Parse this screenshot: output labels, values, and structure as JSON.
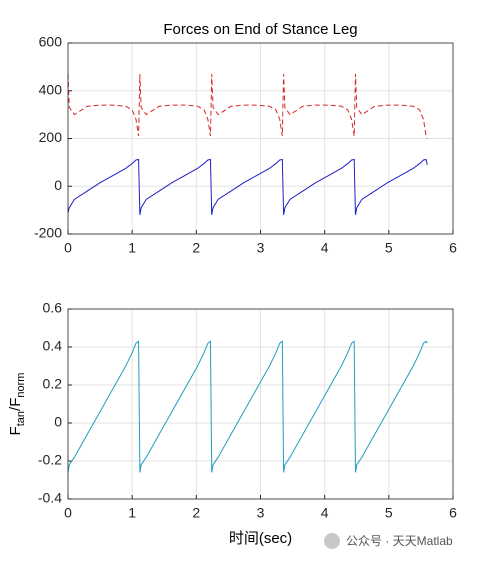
{
  "chart_data": [
    {
      "type": "line",
      "title": "Forces on End of Stance Leg",
      "x": [
        0,
        0.02,
        0.1,
        0.3,
        0.5,
        0.7,
        0.9,
        1.0,
        1.06,
        1.1,
        1.12,
        1.14,
        1.22,
        1.42,
        1.62,
        1.82,
        2.02,
        2.12,
        2.18,
        2.22,
        2.24,
        2.26,
        2.34,
        2.54,
        2.74,
        2.94,
        3.14,
        3.24,
        3.3,
        3.34,
        3.36,
        3.38,
        3.46,
        3.66,
        3.86,
        4.06,
        4.26,
        4.36,
        4.42,
        4.46,
        4.48,
        4.5,
        4.58,
        4.78,
        4.98,
        5.18,
        5.38,
        5.48,
        5.54,
        5.58,
        5.6
      ],
      "series": [
        {
          "color": "#d62728",
          "style": "dashed",
          "values": [
            470,
            330,
            300,
            335,
            340,
            340,
            335,
            320,
            280,
            210,
            470,
            330,
            300,
            335,
            340,
            340,
            335,
            320,
            280,
            210,
            470,
            330,
            300,
            335,
            340,
            340,
            335,
            320,
            280,
            210,
            470,
            330,
            300,
            335,
            340,
            340,
            335,
            320,
            280,
            210,
            470,
            330,
            300,
            335,
            340,
            340,
            335,
            320,
            280,
            210,
            200
          ]
        },
        {
          "color": "#1f1fc8",
          "style": "solid",
          "values": [
            -110,
            -90,
            -55,
            -20,
            15,
            45,
            75,
            95,
            110,
            112,
            -120,
            -90,
            -55,
            -20,
            15,
            45,
            75,
            95,
            110,
            112,
            -120,
            -90,
            -55,
            -20,
            15,
            45,
            75,
            95,
            110,
            112,
            -120,
            -90,
            -55,
            -20,
            15,
            45,
            75,
            95,
            110,
            112,
            -120,
            -90,
            -55,
            -20,
            15,
            45,
            75,
            95,
            110,
            112,
            90
          ]
        }
      ],
      "xlim": [
        0,
        6
      ],
      "xticks": [
        0,
        1,
        2,
        3,
        4,
        5,
        6
      ],
      "ylim": [
        -200,
        600
      ],
      "yticks": [
        -200,
        0,
        200,
        400,
        600
      ],
      "grid": true
    },
    {
      "type": "line",
      "xlabel": "时间(sec)",
      "ylabel_parts": [
        "F",
        "tan",
        "/F",
        "norm"
      ],
      "x": [
        0,
        0.02,
        0.1,
        0.3,
        0.5,
        0.7,
        0.9,
        1.0,
        1.06,
        1.1,
        1.12,
        1.14,
        1.22,
        1.42,
        1.62,
        1.82,
        2.02,
        2.12,
        2.18,
        2.22,
        2.24,
        2.26,
        2.34,
        2.54,
        2.74,
        2.94,
        3.14,
        3.24,
        3.3,
        3.34,
        3.36,
        3.38,
        3.46,
        3.66,
        3.86,
        4.06,
        4.26,
        4.36,
        4.42,
        4.46,
        4.48,
        4.5,
        4.58,
        4.78,
        4.98,
        5.18,
        5.38,
        5.48,
        5.54,
        5.58,
        5.6
      ],
      "series": [
        {
          "color": "#1f9fbf",
          "style": "solid",
          "values": [
            -0.26,
            -0.22,
            -0.18,
            -0.06,
            0.06,
            0.18,
            0.3,
            0.37,
            0.42,
            0.43,
            -0.26,
            -0.22,
            -0.18,
            -0.06,
            0.06,
            0.18,
            0.3,
            0.37,
            0.42,
            0.43,
            -0.26,
            -0.22,
            -0.18,
            -0.06,
            0.06,
            0.18,
            0.3,
            0.37,
            0.42,
            0.43,
            -0.26,
            -0.22,
            -0.18,
            -0.06,
            0.06,
            0.18,
            0.3,
            0.37,
            0.42,
            0.43,
            -0.26,
            -0.22,
            -0.18,
            -0.06,
            0.06,
            0.18,
            0.3,
            0.37,
            0.42,
            0.43,
            0.42
          ]
        }
      ],
      "xlim": [
        0,
        6
      ],
      "xticks": [
        0,
        1,
        2,
        3,
        4,
        5,
        6
      ],
      "ylim": [
        -0.4,
        0.6
      ],
      "yticks": [
        -0.4,
        -0.2,
        0,
        0.2,
        0.4,
        0.6
      ],
      "grid": true
    }
  ],
  "watermark": "公众号 · 天天Matlab"
}
